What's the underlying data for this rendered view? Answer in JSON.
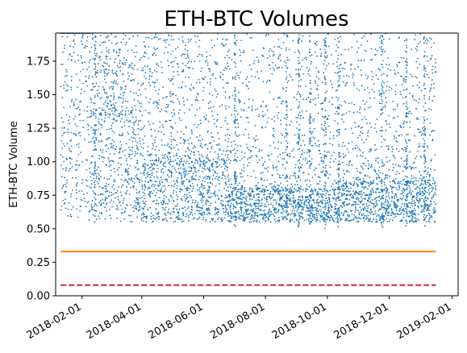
{
  "chart_data": {
    "type": "scatter",
    "title": "ETH-BTC Volumes",
    "xlabel": "",
    "ylabel": "ETH-BTC Volume",
    "xlim": [
      "2018-01-06",
      "2019-02-07"
    ],
    "ylim": [
      0,
      1.96
    ],
    "x_tick_labels": [
      "2018-02-01",
      "2018-04-01",
      "2018-06-01",
      "2018-08-01",
      "2018-10-01",
      "2018-12-01",
      "2019-02-01"
    ],
    "y_tick_labels": [
      "0.00",
      "0.25",
      "0.50",
      "0.75",
      "1.00",
      "1.25",
      "1.50",
      "1.75"
    ],
    "grid": false,
    "colors": {
      "points": "#1f77b4",
      "mean_line": "#ff7f0e",
      "median_line": "#d62728"
    },
    "data_x_range": [
      "2018-01-11",
      "2019-01-16"
    ],
    "points_sample": [
      {
        "x": "2018-01-20",
        "y": 1.8
      },
      {
        "x": "2018-02-05",
        "y": 1.6
      },
      {
        "x": "2018-02-20",
        "y": 1.35
      },
      {
        "x": "2018-03-10",
        "y": 1.2
      },
      {
        "x": "2018-04-15",
        "y": 1.05
      },
      {
        "x": "2018-05-20",
        "y": 0.95
      },
      {
        "x": "2018-06-20",
        "y": 0.9
      },
      {
        "x": "2018-07-25",
        "y": 0.8
      },
      {
        "x": "2018-08-30",
        "y": 0.7
      },
      {
        "x": "2018-09-15",
        "y": 0.55
      },
      {
        "x": "2018-10-20",
        "y": 0.75
      },
      {
        "x": "2018-11-20",
        "y": 0.8
      },
      {
        "x": "2018-12-20",
        "y": 0.85
      },
      {
        "x": "2019-01-10",
        "y": 0.9
      }
    ],
    "reference_lines": [
      {
        "y": 0.33,
        "style": "solid",
        "color": "#ff7f0e"
      },
      {
        "y": 0.08,
        "style": "dashed",
        "color": "#d62728"
      }
    ]
  }
}
